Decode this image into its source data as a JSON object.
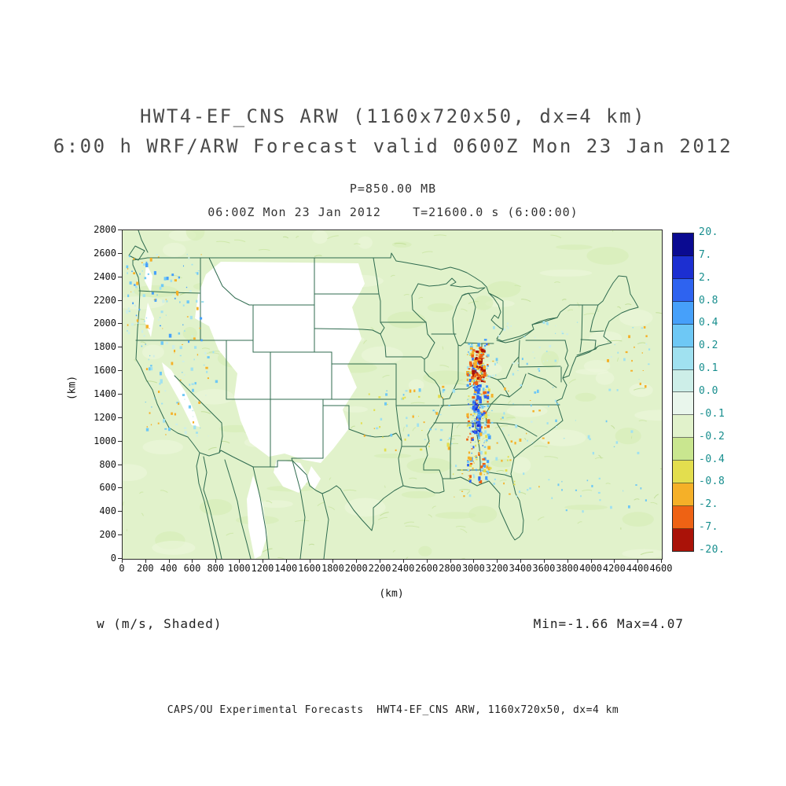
{
  "title": {
    "line1": "HWT4-EF_CNS ARW (1160x720x50, dx=4 km)",
    "line2": "6:00 h WRF/ARW Forecast valid 0600Z Mon 23 Jan 2012"
  },
  "pressure_label": "P=850.00 MB",
  "valid_time_line": "06:00Z Mon 23 Jan 2012    T=21600.0 s (6:00:00)",
  "field_label": "w (m/s, Shaded)",
  "range_label": "Min=-1.66 Max=4.07",
  "footer": "CAPS/OU Experimental Forecasts  HWT4-EF_CNS ARW, 1160x720x50, dx=4 km",
  "axes": {
    "x_unit": "(km)",
    "y_unit": "(km)",
    "x_ticks": [
      "0",
      "200",
      "400",
      "600",
      "800",
      "1000",
      "1200",
      "1400",
      "1600",
      "1800",
      "2000",
      "2200",
      "2400",
      "2600",
      "2800",
      "3000",
      "3200",
      "3400",
      "3600",
      "3800",
      "4000",
      "4200",
      "4400",
      "4600"
    ],
    "y_ticks": [
      "2800",
      "2600",
      "2400",
      "2200",
      "2000",
      "1800",
      "1600",
      "1400",
      "1200",
      "1000",
      "800",
      "600",
      "400",
      "200",
      "0"
    ]
  },
  "colorbar": {
    "labels": [
      "20.",
      "7.",
      "2.",
      "0.8",
      "0.4",
      "0.2",
      "0.1",
      "0.0",
      "-0.1",
      "-0.2",
      "-0.4",
      "-0.8",
      "-2.",
      "-7.",
      "-20."
    ],
    "colors": [
      "#0A0A91",
      "#1C2FD1",
      "#2E63F0",
      "#46A0FA",
      "#6EC8F5",
      "#A0E1F0",
      "#CDEEE8",
      "#E9F6EC",
      "#E1F2CB",
      "#C9E68F",
      "#E3DE4E",
      "#F5B028",
      "#EE6214",
      "#AA1208"
    ]
  },
  "theme": {
    "land_color": "#E1F2CB",
    "missing_color": "#FFFFFF",
    "border_line_color": "#2F6B4F",
    "frame_color": "#2B2B2B",
    "colorbar_label_color": "#178E8E",
    "title_color": "#4A4A4A"
  },
  "chart_data": {
    "type": "heatmap",
    "title": "HWT4-EF_CNS ARW (1160x720x50, dx=4 km)",
    "subtitle": "6:00 h WRF/ARW Forecast valid 0600Z Mon 23 Jan 2012",
    "field": "w (m/s, Shaded)",
    "pressure_level_mb": 850.0,
    "valid": "06:00Z Mon 23 Jan 2012",
    "model_time_s": 21600.0,
    "forecast_hour": "6:00:00",
    "min": -1.66,
    "max": 4.07,
    "x": {
      "label": "(km)",
      "range": [
        0,
        4600
      ],
      "tick_interval": 200
    },
    "y": {
      "label": "(km)",
      "range": [
        0,
        2800
      ],
      "tick_interval": 200
    },
    "colorbar_levels": [
      20,
      7,
      2,
      0.8,
      0.4,
      0.2,
      0.1,
      0.0,
      -0.1,
      -0.2,
      -0.4,
      -0.8,
      -2,
      -7,
      -20
    ],
    "colorbar_colors": [
      "#0A0A91",
      "#1C2FD1",
      "#2E63F0",
      "#46A0FA",
      "#6EC8F5",
      "#A0E1F0",
      "#CDEEE8",
      "#E9F6EC",
      "#E1F2CB",
      "#C9E68F",
      "#E3DE4E",
      "#F5B028",
      "#EE6214",
      "#AA1208"
    ],
    "grid": false,
    "legend_position": "right",
    "basemap": "US state boundaries",
    "missing_data_shown_as": "white (terrain above 850 mb)"
  }
}
